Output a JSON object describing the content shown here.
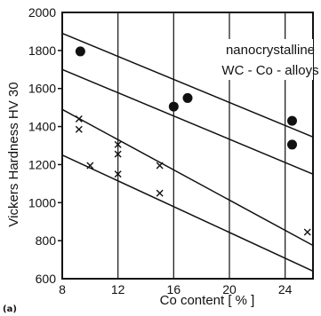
{
  "chart_data": {
    "type": "scatter",
    "xlabel": "Co content  [ % ]",
    "ylabel": "Vickers Hardness HV 30",
    "xlim": [
      8,
      26
    ],
    "ylim": [
      600,
      2000
    ],
    "xticks": [
      8,
      12,
      16,
      20,
      24
    ],
    "yticks": [
      600,
      800,
      1000,
      1200,
      1400,
      1600,
      1800,
      2000
    ],
    "grid": "vertical",
    "annotation": [
      "nanocrystalline",
      "WC - Co - alloys"
    ],
    "panel_label": "(a)",
    "series": [
      {
        "marker": "circle",
        "points": [
          [
            9.3,
            1795
          ],
          [
            16,
            1505
          ],
          [
            17,
            1550
          ],
          [
            24.5,
            1430
          ],
          [
            24.5,
            1305
          ]
        ]
      },
      {
        "marker": "x",
        "points": [
          [
            9.2,
            1440
          ],
          [
            9.2,
            1385
          ],
          [
            10,
            1195
          ],
          [
            12,
            1305
          ],
          [
            12,
            1255
          ],
          [
            12,
            1150
          ],
          [
            15,
            1195
          ],
          [
            15,
            1050
          ],
          [
            25.6,
            845
          ]
        ]
      }
    ],
    "lines": [
      {
        "from": [
          8,
          1890
        ],
        "to": [
          26,
          1345
        ]
      },
      {
        "from": [
          8,
          1700
        ],
        "to": [
          26,
          1150
        ]
      },
      {
        "from": [
          8,
          1490
        ],
        "to": [
          26,
          775
        ]
      },
      {
        "from": [
          8,
          1250
        ],
        "to": [
          26,
          640
        ]
      }
    ]
  }
}
